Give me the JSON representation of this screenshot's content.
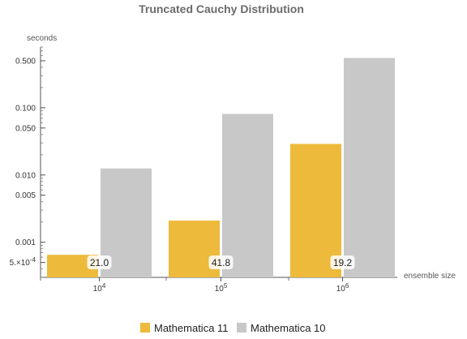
{
  "chart_data": {
    "type": "bar",
    "title": "Truncated Cauchy Distribution",
    "ylabel": "seconds",
    "xlabel": "ensemble size",
    "yscale": "log",
    "ylim": [
      0.0003,
      0.8
    ],
    "grid": false,
    "legend_position": "bottom",
    "categories": [
      {
        "base": "10",
        "exp": "4"
      },
      {
        "base": "10",
        "exp": "5"
      },
      {
        "base": "10",
        "exp": "6"
      }
    ],
    "series": [
      {
        "name": "Mathematica 11",
        "color": "#EDBA3C",
        "values": [
          0.00065,
          0.0021,
          0.029
        ]
      },
      {
        "name": "Mathematica 10",
        "color": "#C8C8C8",
        "values": [
          0.0125,
          0.081,
          0.55
        ]
      }
    ],
    "bar_labels": [
      "21.0",
      "41.8",
      "19.2"
    ],
    "y_ticks": [
      {
        "value": 0.5,
        "label": "0.500"
      },
      {
        "value": 0.1,
        "label": "0.100"
      },
      {
        "value": 0.05,
        "label": "0.050"
      },
      {
        "value": 0.01,
        "label": "0.010"
      },
      {
        "value": 0.005,
        "label": "0.005"
      },
      {
        "value": 0.001,
        "label": "0.001"
      },
      {
        "value": 0.0005,
        "label": "5.×10",
        "exp": "-4"
      }
    ]
  }
}
